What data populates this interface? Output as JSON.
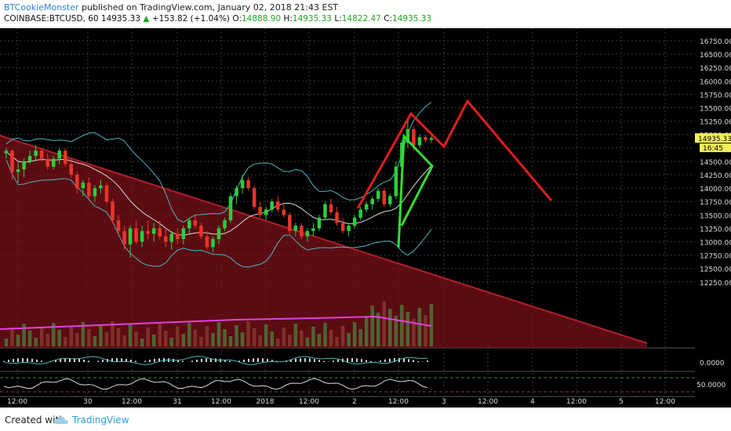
{
  "header": {
    "author": "BTCookieMonster",
    "published_text": "published on TradingView.com, January 02, 2018 21:43 EST",
    "symbol": "COINBASE:BTCUSD, 60",
    "last": "14935.33",
    "change": "+153.82 (+1.04%)",
    "o_label": "O:",
    "o": "14888.90",
    "h_label": "H:",
    "h": "14935.33",
    "l_label": "L:",
    "l": "14822.47",
    "c_label": "C:",
    "c": "14935.33"
  },
  "footer": {
    "created": "Created with",
    "brand": "TradingView"
  },
  "colors": {
    "background": "#000000",
    "bull": "#2ecc40",
    "bear": "#e8352b",
    "zone": "#7a1018",
    "projection": "#e01e1e",
    "pennant": "#33dd33",
    "bollinger": "#4fb3bf",
    "ma": "#d8d8d8",
    "volume_ma": "#e040e0"
  },
  "chart_data": {
    "type": "candlestick",
    "price_axis_ticks": [
      16750,
      16500,
      16250,
      16000,
      15750,
      15500,
      15250,
      15000,
      14750,
      14500,
      14250,
      14000,
      13750,
      13500,
      13250,
      13000,
      12750,
      12500,
      12250
    ],
    "price_axis_labels": [
      "16750.00",
      "16500.00",
      "16250.00",
      "16000.00",
      "15750.00",
      "15500.00",
      "15250.00",
      "15000.00",
      "14750.00",
      "14500.00",
      "14250.00",
      "14000.00",
      "13750.00",
      "13500.00",
      "13250.00",
      "13000.00",
      "12750.00",
      "12500.00",
      "12250.00"
    ],
    "ylim": [
      12200,
      16900
    ],
    "last_price_label": "14935.33",
    "countdown_label": "16:45",
    "x_labels": [
      "12:00",
      "30",
      "12:00",
      "31",
      "12:00",
      "2018",
      "12:00",
      "2",
      "12:00",
      "3",
      "12:00",
      "4",
      "12:00",
      "5",
      "12:00"
    ],
    "osc1_label": "0.0000",
    "osc2_label": "50.0000",
    "candles": [
      [
        14650,
        14750,
        14550,
        14700
      ],
      [
        14700,
        14720,
        14150,
        14300
      ],
      [
        14300,
        14500,
        14100,
        14350
      ],
      [
        14350,
        14550,
        14200,
        14500
      ],
      [
        14500,
        14700,
        14450,
        14600
      ],
      [
        14600,
        14800,
        14500,
        14700
      ],
      [
        14700,
        14750,
        14500,
        14550
      ],
      [
        14550,
        14650,
        14350,
        14400
      ],
      [
        14400,
        14600,
        14350,
        14550
      ],
      [
        14550,
        14750,
        14450,
        14700
      ],
      [
        14700,
        14750,
        14400,
        14450
      ],
      [
        14450,
        14550,
        14200,
        14250
      ],
      [
        14250,
        14300,
        13900,
        14000
      ],
      [
        14000,
        14150,
        13850,
        14100
      ],
      [
        14100,
        14200,
        13800,
        13850
      ],
      [
        13850,
        14050,
        13750,
        14000
      ],
      [
        14000,
        14150,
        13900,
        14050
      ],
      [
        14050,
        14100,
        13700,
        13750
      ],
      [
        13750,
        13800,
        13350,
        13400
      ],
      [
        13400,
        13500,
        13100,
        13200
      ],
      [
        13200,
        13300,
        12850,
        12950
      ],
      [
        12950,
        13300,
        12700,
        13250
      ],
      [
        13250,
        13400,
        12950,
        13000
      ],
      [
        13000,
        13300,
        12900,
        13200
      ],
      [
        13200,
        13400,
        13050,
        13150
      ],
      [
        13150,
        13350,
        13000,
        13250
      ],
      [
        13250,
        13400,
        13050,
        13100
      ],
      [
        13100,
        13250,
        12900,
        13000
      ],
      [
        13000,
        13200,
        12850,
        13150
      ],
      [
        13150,
        13250,
        12950,
        13050
      ],
      [
        13050,
        13300,
        12950,
        13250
      ],
      [
        13250,
        13450,
        13150,
        13400
      ],
      [
        13400,
        13500,
        13250,
        13300
      ],
      [
        13300,
        13350,
        13050,
        13100
      ],
      [
        13100,
        13200,
        12850,
        12900
      ],
      [
        12900,
        13100,
        12800,
        13050
      ],
      [
        13050,
        13300,
        12950,
        13250
      ],
      [
        13250,
        13450,
        13200,
        13400
      ],
      [
        13400,
        13900,
        13350,
        13850
      ],
      [
        13850,
        14050,
        13700,
        14000
      ],
      [
        14000,
        14250,
        13900,
        14150
      ],
      [
        14150,
        14200,
        13950,
        14000
      ],
      [
        14000,
        14050,
        13600,
        13650
      ],
      [
        13650,
        13750,
        13450,
        13500
      ],
      [
        13500,
        13650,
        13400,
        13600
      ],
      [
        13600,
        13800,
        13550,
        13750
      ],
      [
        13750,
        13850,
        13550,
        13600
      ],
      [
        13600,
        13700,
        13450,
        13500
      ],
      [
        13500,
        13550,
        13150,
        13200
      ],
      [
        13200,
        13350,
        13100,
        13300
      ],
      [
        13300,
        13350,
        13050,
        13100
      ],
      [
        13100,
        13250,
        13000,
        13200
      ],
      [
        13200,
        13350,
        13100,
        13250
      ],
      [
        13250,
        13500,
        13200,
        13450
      ],
      [
        13450,
        13750,
        13400,
        13700
      ],
      [
        13700,
        13800,
        13500,
        13550
      ],
      [
        13550,
        13650,
        13300,
        13350
      ],
      [
        13350,
        13450,
        13150,
        13200
      ],
      [
        13200,
        13350,
        13100,
        13300
      ],
      [
        13300,
        13500,
        13250,
        13450
      ],
      [
        13450,
        13650,
        13400,
        13600
      ],
      [
        13600,
        13750,
        13550,
        13700
      ],
      [
        13700,
        13850,
        13600,
        13800
      ],
      [
        13800,
        14000,
        13750,
        13950
      ],
      [
        13950,
        14000,
        13650,
        13700
      ],
      [
        13700,
        13900,
        13650,
        13850
      ],
      [
        13850,
        14500,
        13800,
        14400
      ],
      [
        14400,
        14900,
        14350,
        14850
      ],
      [
        14850,
        15300,
        14750,
        15100
      ],
      [
        15100,
        15150,
        14700,
        14800
      ],
      [
        14800,
        15000,
        14750,
        14950
      ],
      [
        14950,
        15000,
        14850,
        14900
      ],
      [
        14900,
        14980,
        14850,
        14935
      ]
    ],
    "annotations": [
      "descending triangle zone",
      "bull pennant",
      "projected zigzag path"
    ]
  }
}
